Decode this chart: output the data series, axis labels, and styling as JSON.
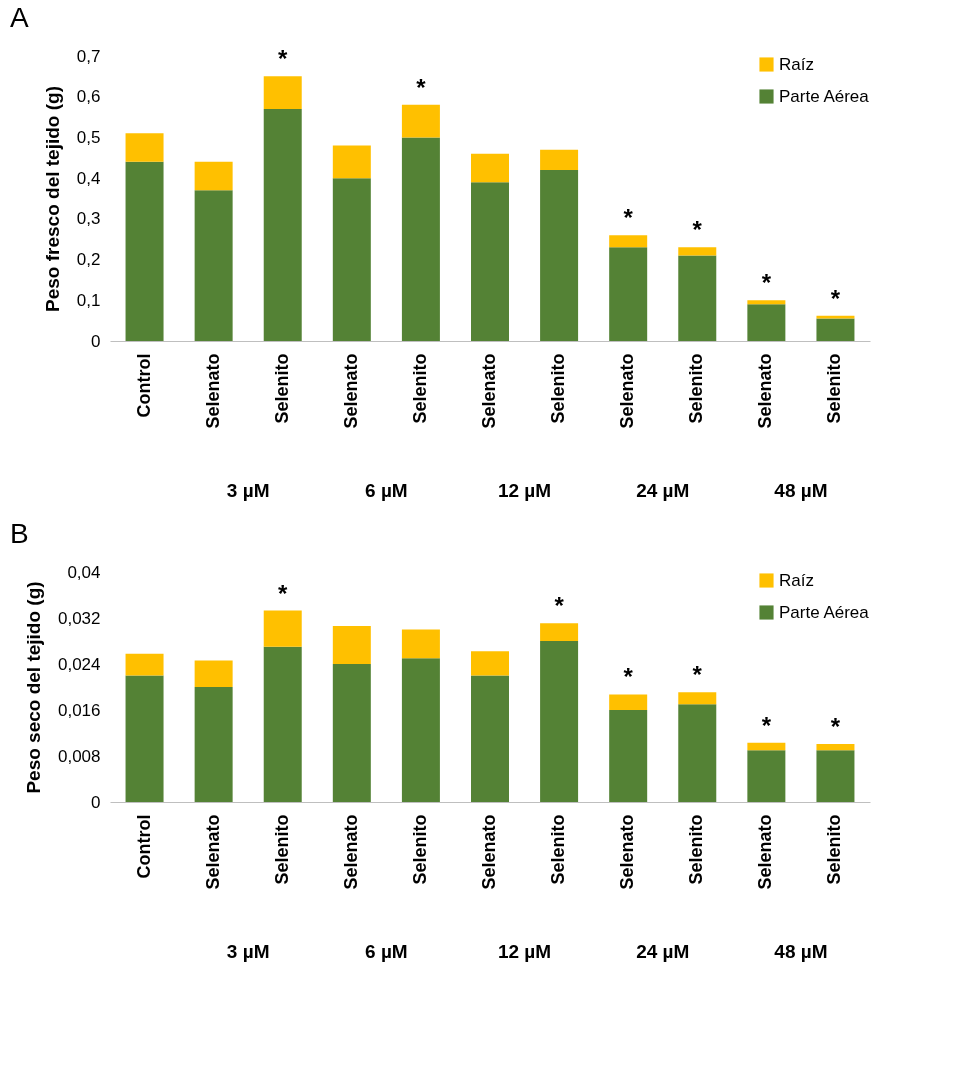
{
  "chart_data": [
    {
      "type": "bar",
      "title": "A",
      "ylabel": "Peso fresco del tejido (g)",
      "stacked": true,
      "legend": "top right",
      "grid": false,
      "categories": [
        "Control",
        "Selenato",
        "Selenito",
        "Selenato",
        "Selenito",
        "Selenato",
        "Selenito",
        "Selenato",
        "Selenito",
        "Selenato",
        "Selenito"
      ],
      "series": [
        {
          "name": "Parte Aérea",
          "color": "#548235",
          "values": [
            0.44,
            0.37,
            0.57,
            0.4,
            0.5,
            0.39,
            0.42,
            0.23,
            0.21,
            0.09,
            0.055
          ]
        },
        {
          "name": "Raíz",
          "color": "#ffc000",
          "values": [
            0.07,
            0.07,
            0.08,
            0.08,
            0.08,
            0.07,
            0.05,
            0.03,
            0.02,
            0.01,
            0.007
          ],
          "value_labels": [
            null,
            null,
            "*",
            null,
            "*",
            null,
            null,
            "*",
            "*",
            "*",
            "*"
          ]
        }
      ],
      "ylim": [
        0,
        0.7
      ],
      "yticks": [
        0,
        {
          "value": 0.1,
          "label": "0,1"
        },
        {
          "value": 0.2,
          "label": "0,2"
        },
        {
          "value": 0.3,
          "label": "0,3"
        },
        {
          "value": 0.4,
          "label": "0,4"
        },
        {
          "value": 0.5,
          "label": "0,5"
        },
        {
          "value": 0.6,
          "label": "0,6"
        },
        {
          "value": 0.7,
          "label": "0,7"
        }
      ],
      "annotations": [
        "3 µM",
        "6 µM",
        "12 µM",
        "24  µM",
        "48 µM"
      ]
    },
    {
      "type": "bar",
      "title": "B",
      "ylabel": "Peso seco del tejido (g)",
      "stacked": true,
      "legend": "top right",
      "grid": false,
      "categories": [
        "Control",
        "Selenato",
        "Selenito",
        "Selenato",
        "Selenito",
        "Selenato",
        "Selenito",
        "Selenato",
        "Selenito",
        "Selenato",
        "Selenito"
      ],
      "series": [
        {
          "name": "Parte Aérea",
          "color": "#548235",
          "values": [
            0.022,
            0.02,
            0.027,
            0.024,
            0.025,
            0.022,
            0.028,
            0.016,
            0.017,
            0.009,
            0.009
          ]
        },
        {
          "name": "Raíz",
          "color": "#ffc000",
          "values": [
            0.0038,
            0.0046,
            0.0063,
            0.0066,
            0.005,
            0.0042,
            0.0031,
            0.0027,
            0.0021,
            0.0013,
            0.0011
          ],
          "value_labels": [
            null,
            null,
            "*",
            null,
            null,
            null,
            "*",
            "*",
            "*",
            "*",
            "*"
          ]
        }
      ],
      "ylim": [
        0,
        0.04
      ],
      "yticks": [
        0,
        {
          "value": 0.008,
          "label": "0,008"
        },
        {
          "value": 0.016,
          "label": "0,016"
        },
        {
          "value": 0.024,
          "label": "0,024"
        },
        {
          "value": 0.032,
          "label": "0,032"
        },
        {
          "value": 0.04,
          "label": "0,04"
        }
      ],
      "annotations": [
        "3 µM",
        "6 µM",
        "12 µM",
        "24 µM",
        "48 µM"
      ]
    }
  ]
}
